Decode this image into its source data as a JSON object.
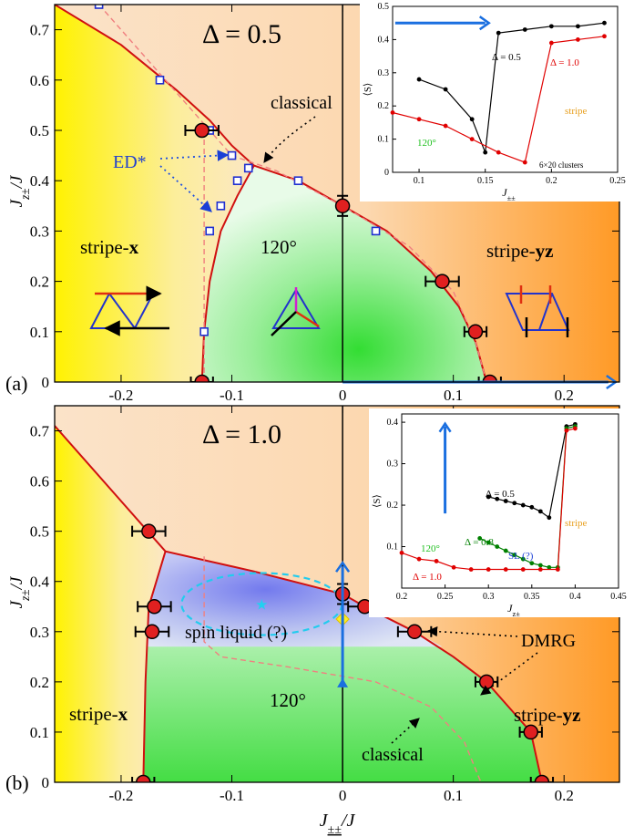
{
  "figure": {
    "panel_a_label": "(a)",
    "panel_b_label": "(b)",
    "ylabel_main": "J",
    "ylabel_sub": "z±",
    "ylabel_tail": "/J",
    "xlabel_main": "J",
    "xlabel_sub": "±±",
    "xlabel_tail": "/J"
  },
  "chart_data": [
    {
      "type": "scatter",
      "panel": "a",
      "title": "Δ = 0.5",
      "xlim": [
        -0.26,
        0.25
      ],
      "ylim": [
        0,
        0.75
      ],
      "xticks": [
        -0.2,
        -0.1,
        0,
        0.1,
        0.2
      ],
      "xtick_labels": [
        "-0.2",
        "-0.1",
        "0",
        "0.1",
        "0.2"
      ],
      "yticks": [
        0,
        0.1,
        0.2,
        0.3,
        0.4,
        0.5,
        0.6,
        0.7
      ],
      "ytick_labels": [
        "0",
        "0.1",
        "0.2",
        "0.3",
        "0.4",
        "0.5",
        "0.6",
        "0.7"
      ],
      "phase_labels": {
        "left": "stripe-",
        "left_bold": "x",
        "center": "120°",
        "right": "stripe-",
        "right_bold": "yz"
      },
      "annotations": {
        "classical": "classical",
        "ed": "ED*"
      },
      "boundary_stripe_x": [
        [
          -0.26,
          0.75
        ],
        [
          -0.2,
          0.67
        ],
        [
          -0.15,
          0.58
        ],
        [
          -0.12,
          0.52
        ],
        [
          -0.1,
          0.47
        ],
        [
          -0.08,
          0.43
        ]
      ],
      "boundary_120": [
        [
          -0.127,
          0
        ],
        [
          -0.125,
          0.1
        ],
        [
          -0.12,
          0.2
        ],
        [
          -0.11,
          0.3
        ],
        [
          -0.095,
          0.37
        ],
        [
          -0.08,
          0.43
        ],
        [
          -0.04,
          0.4
        ],
        [
          0,
          0.35
        ],
        [
          0.04,
          0.3
        ],
        [
          0.08,
          0.22
        ],
        [
          0.105,
          0.15
        ],
        [
          0.12,
          0.08
        ],
        [
          0.13,
          0
        ]
      ],
      "dmrg_points": [
        {
          "x": -0.127,
          "y": 0.5,
          "err": 0.015
        },
        {
          "x": 0.0,
          "y": 0.35,
          "yerr": 0.02
        },
        {
          "x": 0.09,
          "y": 0.2,
          "err": 0.015
        },
        {
          "x": 0.12,
          "y": 0.1,
          "err": 0.01
        },
        {
          "x": -0.127,
          "y": 0.0,
          "err": 0.01
        },
        {
          "x": 0.133,
          "y": 0.0,
          "err": 0.01
        }
      ],
      "ed_points": [
        [
          -0.22,
          0.75
        ],
        [
          -0.165,
          0.6
        ],
        [
          -0.12,
          0.5
        ],
        [
          -0.1,
          0.45
        ],
        [
          -0.085,
          0.425
        ],
        [
          -0.095,
          0.4
        ],
        [
          -0.11,
          0.35
        ],
        [
          -0.12,
          0.3
        ],
        [
          -0.125,
          0.1
        ],
        [
          -0.125,
          0.0
        ],
        [
          -0.04,
          0.4
        ],
        [
          0.0,
          0.35
        ],
        [
          0.03,
          0.3
        ],
        [
          0.09,
          0.2
        ],
        [
          0.12,
          0.1
        ]
      ],
      "inset": {
        "xlabel_main": "J",
        "xlabel_sub": "±±",
        "ylabel": "⟨S⟩",
        "xlim": [
          0.08,
          0.25
        ],
        "ylim": [
          0,
          0.5
        ],
        "xticks": [
          0.1,
          0.15,
          0.2,
          0.25
        ],
        "xtick_labels": [
          "0.1",
          "0.15",
          "0.2",
          "0.25"
        ],
        "yticks": [
          0,
          0.1,
          0.2,
          0.3,
          0.4,
          0.5
        ],
        "ytick_labels": [
          "0",
          "0.1",
          "0.2",
          "0.3",
          "0.4",
          "0.5"
        ],
        "note": "6×20 clusters",
        "phase_120": "120°",
        "phase_stripe": "stripe",
        "series": [
          {
            "name": "Δ = 0.5",
            "color": "#000000",
            "x": [
              0.1,
              0.12,
              0.14,
              0.15,
              0.16,
              0.18,
              0.2,
              0.22,
              0.24
            ],
            "y": [
              0.28,
              0.25,
              0.16,
              0.06,
              0.42,
              0.43,
              0.44,
              0.44,
              0.45
            ]
          },
          {
            "name": "Δ = 1.0",
            "color": "#e00000",
            "x": [
              0.08,
              0.1,
              0.12,
              0.14,
              0.16,
              0.18,
              0.2,
              0.22,
              0.24
            ],
            "y": [
              0.18,
              0.16,
              0.14,
              0.1,
              0.06,
              0.03,
              0.39,
              0.4,
              0.41
            ]
          }
        ]
      }
    },
    {
      "type": "scatter",
      "panel": "b",
      "title": "Δ = 1.0",
      "xlim": [
        -0.26,
        0.25
      ],
      "ylim": [
        0,
        0.75
      ],
      "xticks": [
        -0.2,
        -0.1,
        0,
        0.1,
        0.2
      ],
      "xtick_labels": [
        "-0.2",
        "-0.1",
        "0",
        "0.1",
        "0.2"
      ],
      "yticks": [
        0,
        0.1,
        0.2,
        0.3,
        0.4,
        0.5,
        0.6,
        0.7
      ],
      "ytick_labels": [
        "0",
        "0.1",
        "0.2",
        "0.3",
        "0.4",
        "0.5",
        "0.6",
        "0.7"
      ],
      "phase_labels": {
        "left": "stripe-",
        "left_bold": "x",
        "center": "120°",
        "right": "stripe-",
        "right_bold": "yz",
        "spin_liquid": "spin liquid (?)"
      },
      "annotations": {
        "classical": "classical",
        "dmrg": "DMRG"
      },
      "dmrg_points": [
        {
          "x": -0.175,
          "y": 0.5,
          "err": 0.015
        },
        {
          "x": -0.17,
          "y": 0.35,
          "err": 0.015
        },
        {
          "x": -0.172,
          "y": 0.3,
          "err": 0.015
        },
        {
          "x": 0.0,
          "y": 0.375,
          "yerr": 0.02
        },
        {
          "x": 0.02,
          "y": 0.35,
          "err": 0.015
        },
        {
          "x": 0.065,
          "y": 0.3,
          "err": 0.015
        },
        {
          "x": 0.13,
          "y": 0.2,
          "err": 0.01
        },
        {
          "x": 0.17,
          "y": 0.1,
          "err": 0.01
        },
        {
          "x": -0.18,
          "y": 0.0,
          "err": 0.01
        },
        {
          "x": 0.18,
          "y": 0.0,
          "err": 0.01
        }
      ],
      "inset": {
        "xlabel_main": "J",
        "xlabel_sub": "z±",
        "ylabel": "⟨S⟩",
        "xlim": [
          0.2,
          0.45
        ],
        "ylim": [
          0,
          0.42
        ],
        "xticks": [
          0.2,
          0.25,
          0.3,
          0.35,
          0.4,
          0.45
        ],
        "xtick_labels": [
          "0.2",
          "0.25",
          "0.3",
          "0.35",
          "0.4",
          "0.45"
        ],
        "yticks": [
          0.1,
          0.2,
          0.3,
          0.4
        ],
        "ytick_labels": [
          "0.1",
          "0.2",
          "0.3",
          "0.4"
        ],
        "phase_120": "120°",
        "phase_stripe": "stripe",
        "phase_sl": "SL (?)",
        "series": [
          {
            "name": "Δ = 0.5",
            "color": "#000000",
            "x": [
              0.3,
              0.31,
              0.32,
              0.33,
              0.34,
              0.35,
              0.36,
              0.37,
              0.39,
              0.4
            ],
            "y": [
              0.22,
              0.215,
              0.21,
              0.205,
              0.2,
              0.195,
              0.185,
              0.17,
              0.39,
              0.395
            ]
          },
          {
            "name": "Δ = 0.8",
            "color": "#008000",
            "x": [
              0.29,
              0.3,
              0.31,
              0.32,
              0.33,
              0.34,
              0.35,
              0.36,
              0.37,
              0.38,
              0.39,
              0.4
            ],
            "y": [
              0.12,
              0.11,
              0.1,
              0.09,
              0.08,
              0.07,
              0.06,
              0.055,
              0.05,
              0.05,
              0.385,
              0.39
            ]
          },
          {
            "name": "Δ = 1.0",
            "color": "#e00000",
            "x": [
              0.2,
              0.22,
              0.24,
              0.26,
              0.28,
              0.3,
              0.32,
              0.34,
              0.36,
              0.38,
              0.39,
              0.4
            ],
            "y": [
              0.085,
              0.07,
              0.065,
              0.05,
              0.045,
              0.045,
              0.045,
              0.045,
              0.045,
              0.045,
              0.38,
              0.385
            ]
          }
        ]
      }
    }
  ]
}
